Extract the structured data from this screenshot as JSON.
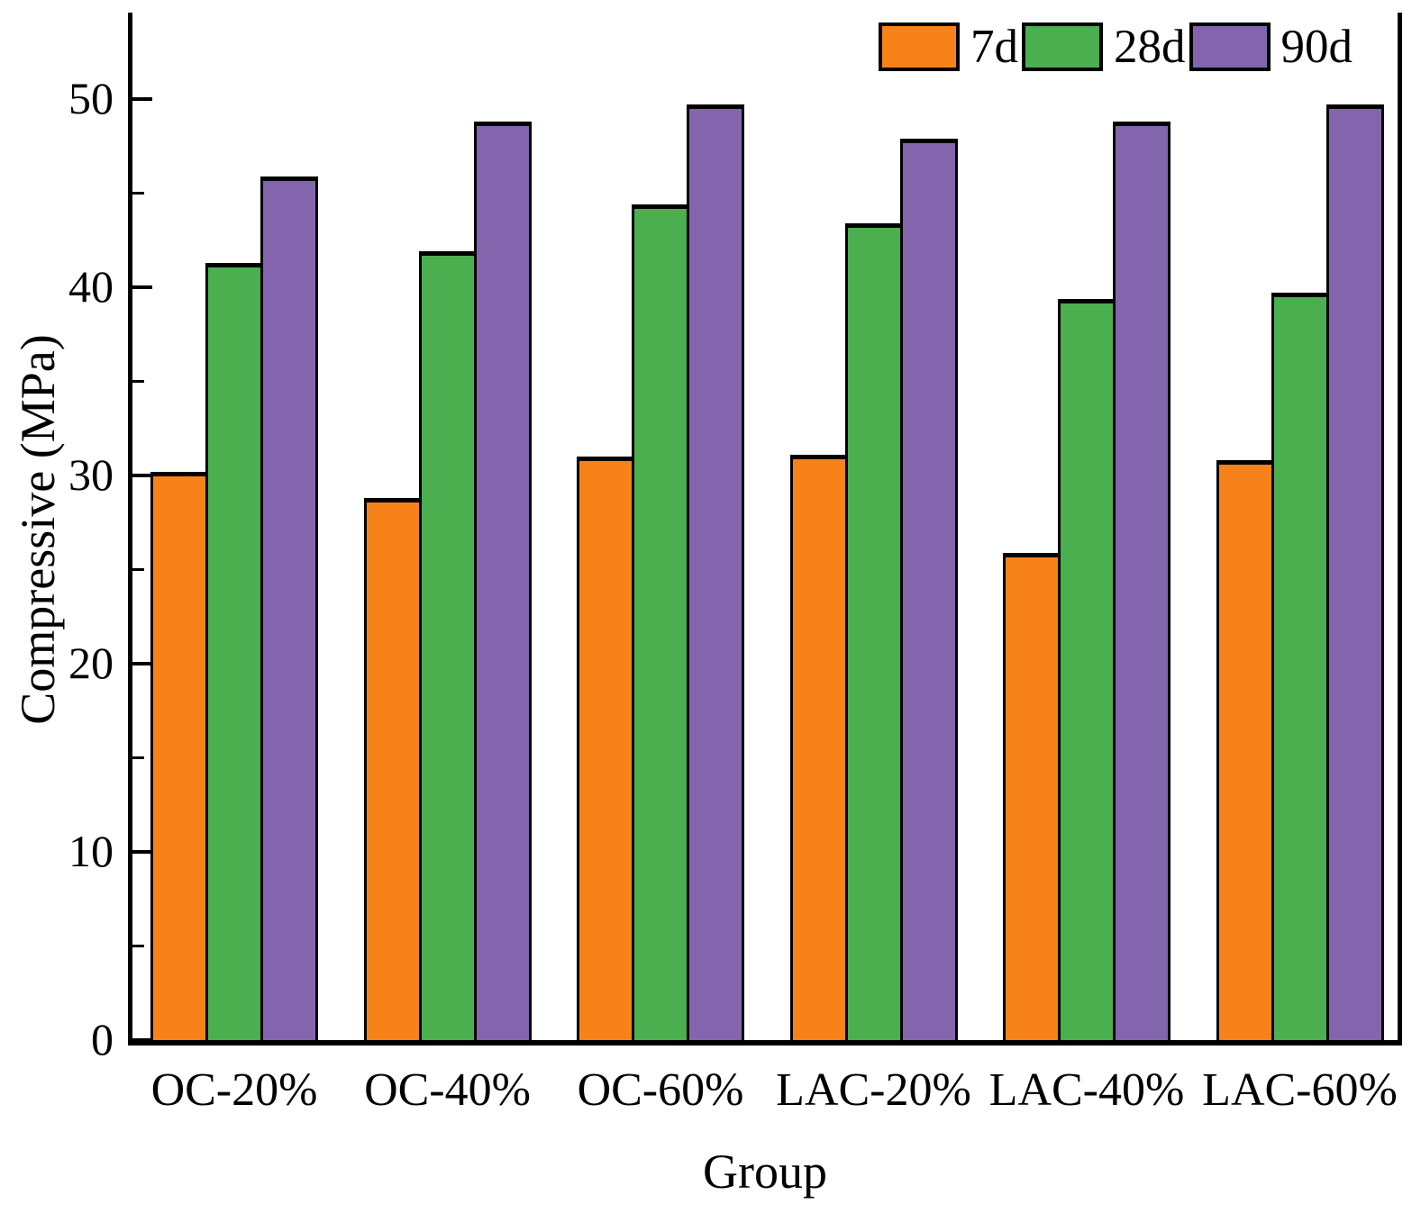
{
  "chart_data": {
    "type": "bar",
    "title": "",
    "categories": [
      "OC-20%",
      "OC-40%",
      "OC-60%",
      "LAC-20%",
      "LAC-40%",
      "LAC-60%"
    ],
    "series": [
      {
        "name": "7d",
        "color": "#F8821A",
        "values": [
          30.2,
          28.8,
          31.0,
          31.1,
          25.9,
          30.8
        ]
      },
      {
        "name": "28d",
        "color": "#4BAE4F",
        "values": [
          41.3,
          41.9,
          44.4,
          43.4,
          39.4,
          39.7
        ]
      },
      {
        "name": "90d",
        "color": "#8365AE",
        "values": [
          45.9,
          48.8,
          49.7,
          47.9,
          48.8,
          49.7
        ]
      }
    ],
    "xlabel": "Group",
    "ylabel": "Compressive (MPa)",
    "ylim": [
      0,
      54.6
    ],
    "yticks_major": [
      0,
      10,
      20,
      30,
      40,
      50
    ],
    "yticks_minor": [
      5,
      15,
      25,
      35,
      45
    ],
    "grid": false,
    "legend_position": "top-right",
    "bar_outline_color": "#000000",
    "axis_color": "#000000"
  }
}
